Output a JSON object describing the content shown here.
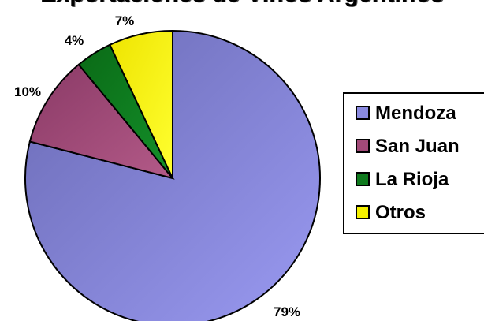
{
  "chart_data": {
    "type": "pie",
    "title": "Exportaciones de Vinos Argentinos",
    "categories": [
      "Mendoza",
      "San Juan",
      "La Rioja",
      "Otros"
    ],
    "values": [
      79,
      10,
      4,
      7
    ],
    "value_labels": [
      "79%",
      "10%",
      "4%",
      "7%"
    ],
    "colors": [
      "#8a8ae0",
      "#a24a78",
      "#0f7a1e",
      "#f4f000"
    ],
    "legend_position": "right",
    "start_angle": "12 o'clock",
    "direction": "clockwise"
  }
}
